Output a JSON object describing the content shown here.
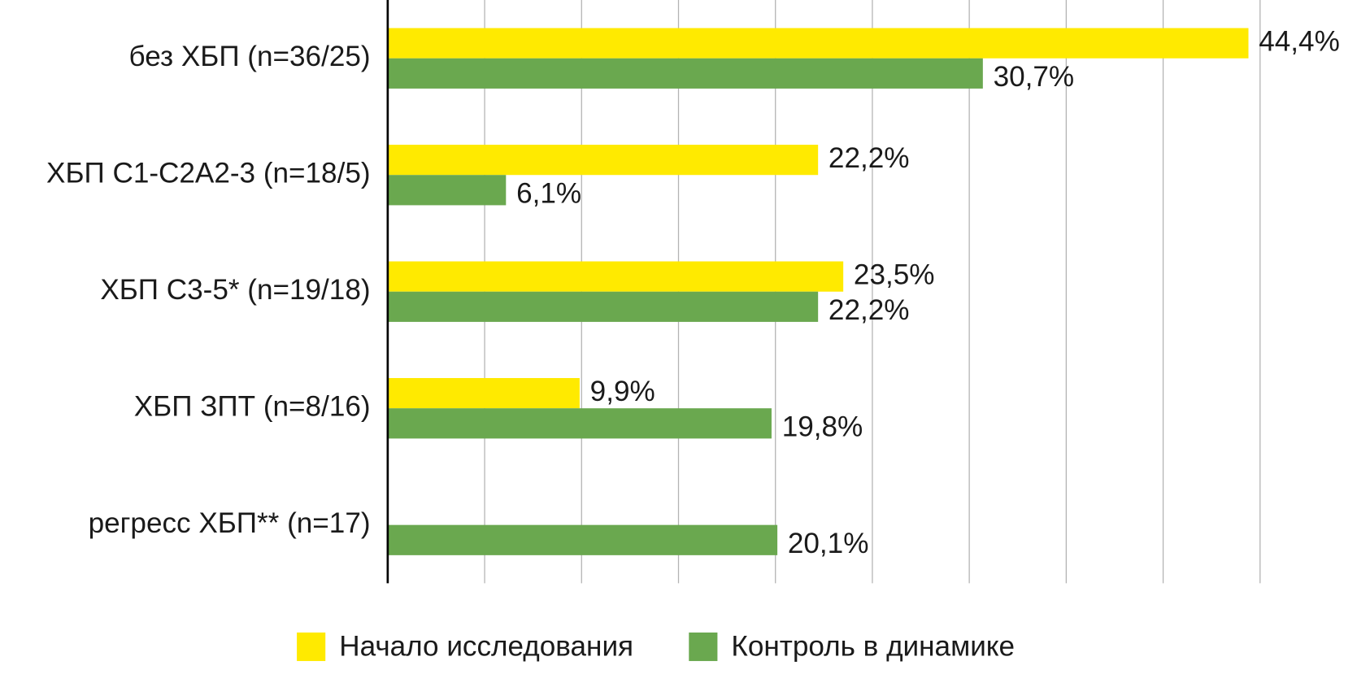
{
  "chart_data": {
    "type": "bar",
    "orientation": "horizontal",
    "categories": [
      "без ХБП (n=36/25)",
      "ХБП С1-С2А2-3 (n=18/5)",
      "ХБП С3-5* (n=19/18)",
      "ХБП ЗПТ (n=8/16)",
      "регресс ХБП** (n=17)"
    ],
    "series": [
      {
        "name": "Начало исследования",
        "color": "#ffea00",
        "values": [
          44.4,
          22.2,
          23.5,
          9.9,
          null
        ],
        "value_labels": [
          "44,4%",
          "22,2%",
          "23,5%",
          "9,9%",
          null
        ]
      },
      {
        "name": "Контроль в динамике",
        "color": "#6aa84f",
        "values": [
          30.7,
          6.1,
          22.2,
          19.8,
          20.1
        ],
        "value_labels": [
          "30,7%",
          "6,1%",
          "22,2%",
          "19,8%",
          "20,1%"
        ]
      }
    ],
    "xlim": [
      0,
      50
    ],
    "xticks": [
      5,
      10,
      15,
      20,
      25,
      30,
      35,
      40,
      45
    ],
    "grid": true,
    "legend": "bottom"
  }
}
